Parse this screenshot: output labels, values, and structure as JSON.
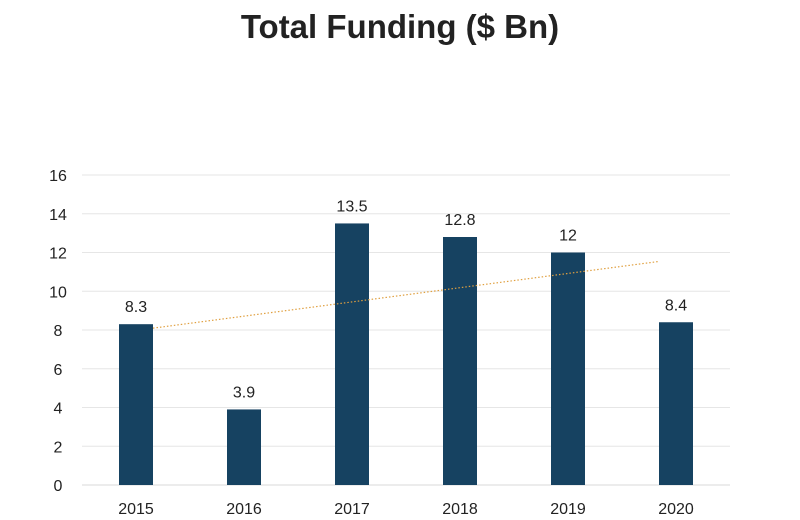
{
  "chart_data": {
    "type": "bar",
    "title": "Total Funding ($ Bn)",
    "xlabel": "",
    "ylabel": "",
    "categories": [
      "2015",
      "2016",
      "2017",
      "2018",
      "2019",
      "2020"
    ],
    "values": [
      8.3,
      3.9,
      13.5,
      12.8,
      12,
      8.4
    ],
    "data_labels": [
      "8.3",
      "3.9",
      "13.5",
      "12.8",
      "12",
      "8.4"
    ],
    "ylim": [
      0,
      16
    ],
    "yticks": [
      "0",
      "2",
      "4",
      "6",
      "8",
      "10",
      "12",
      "14",
      "16"
    ],
    "grid": true,
    "trendline": {
      "type": "linear",
      "style": "dotted"
    },
    "colors": {
      "bar": "#164261",
      "trend": "#e0a040",
      "grid": "#e6e6e6",
      "axis": "#d9d9d9"
    }
  }
}
